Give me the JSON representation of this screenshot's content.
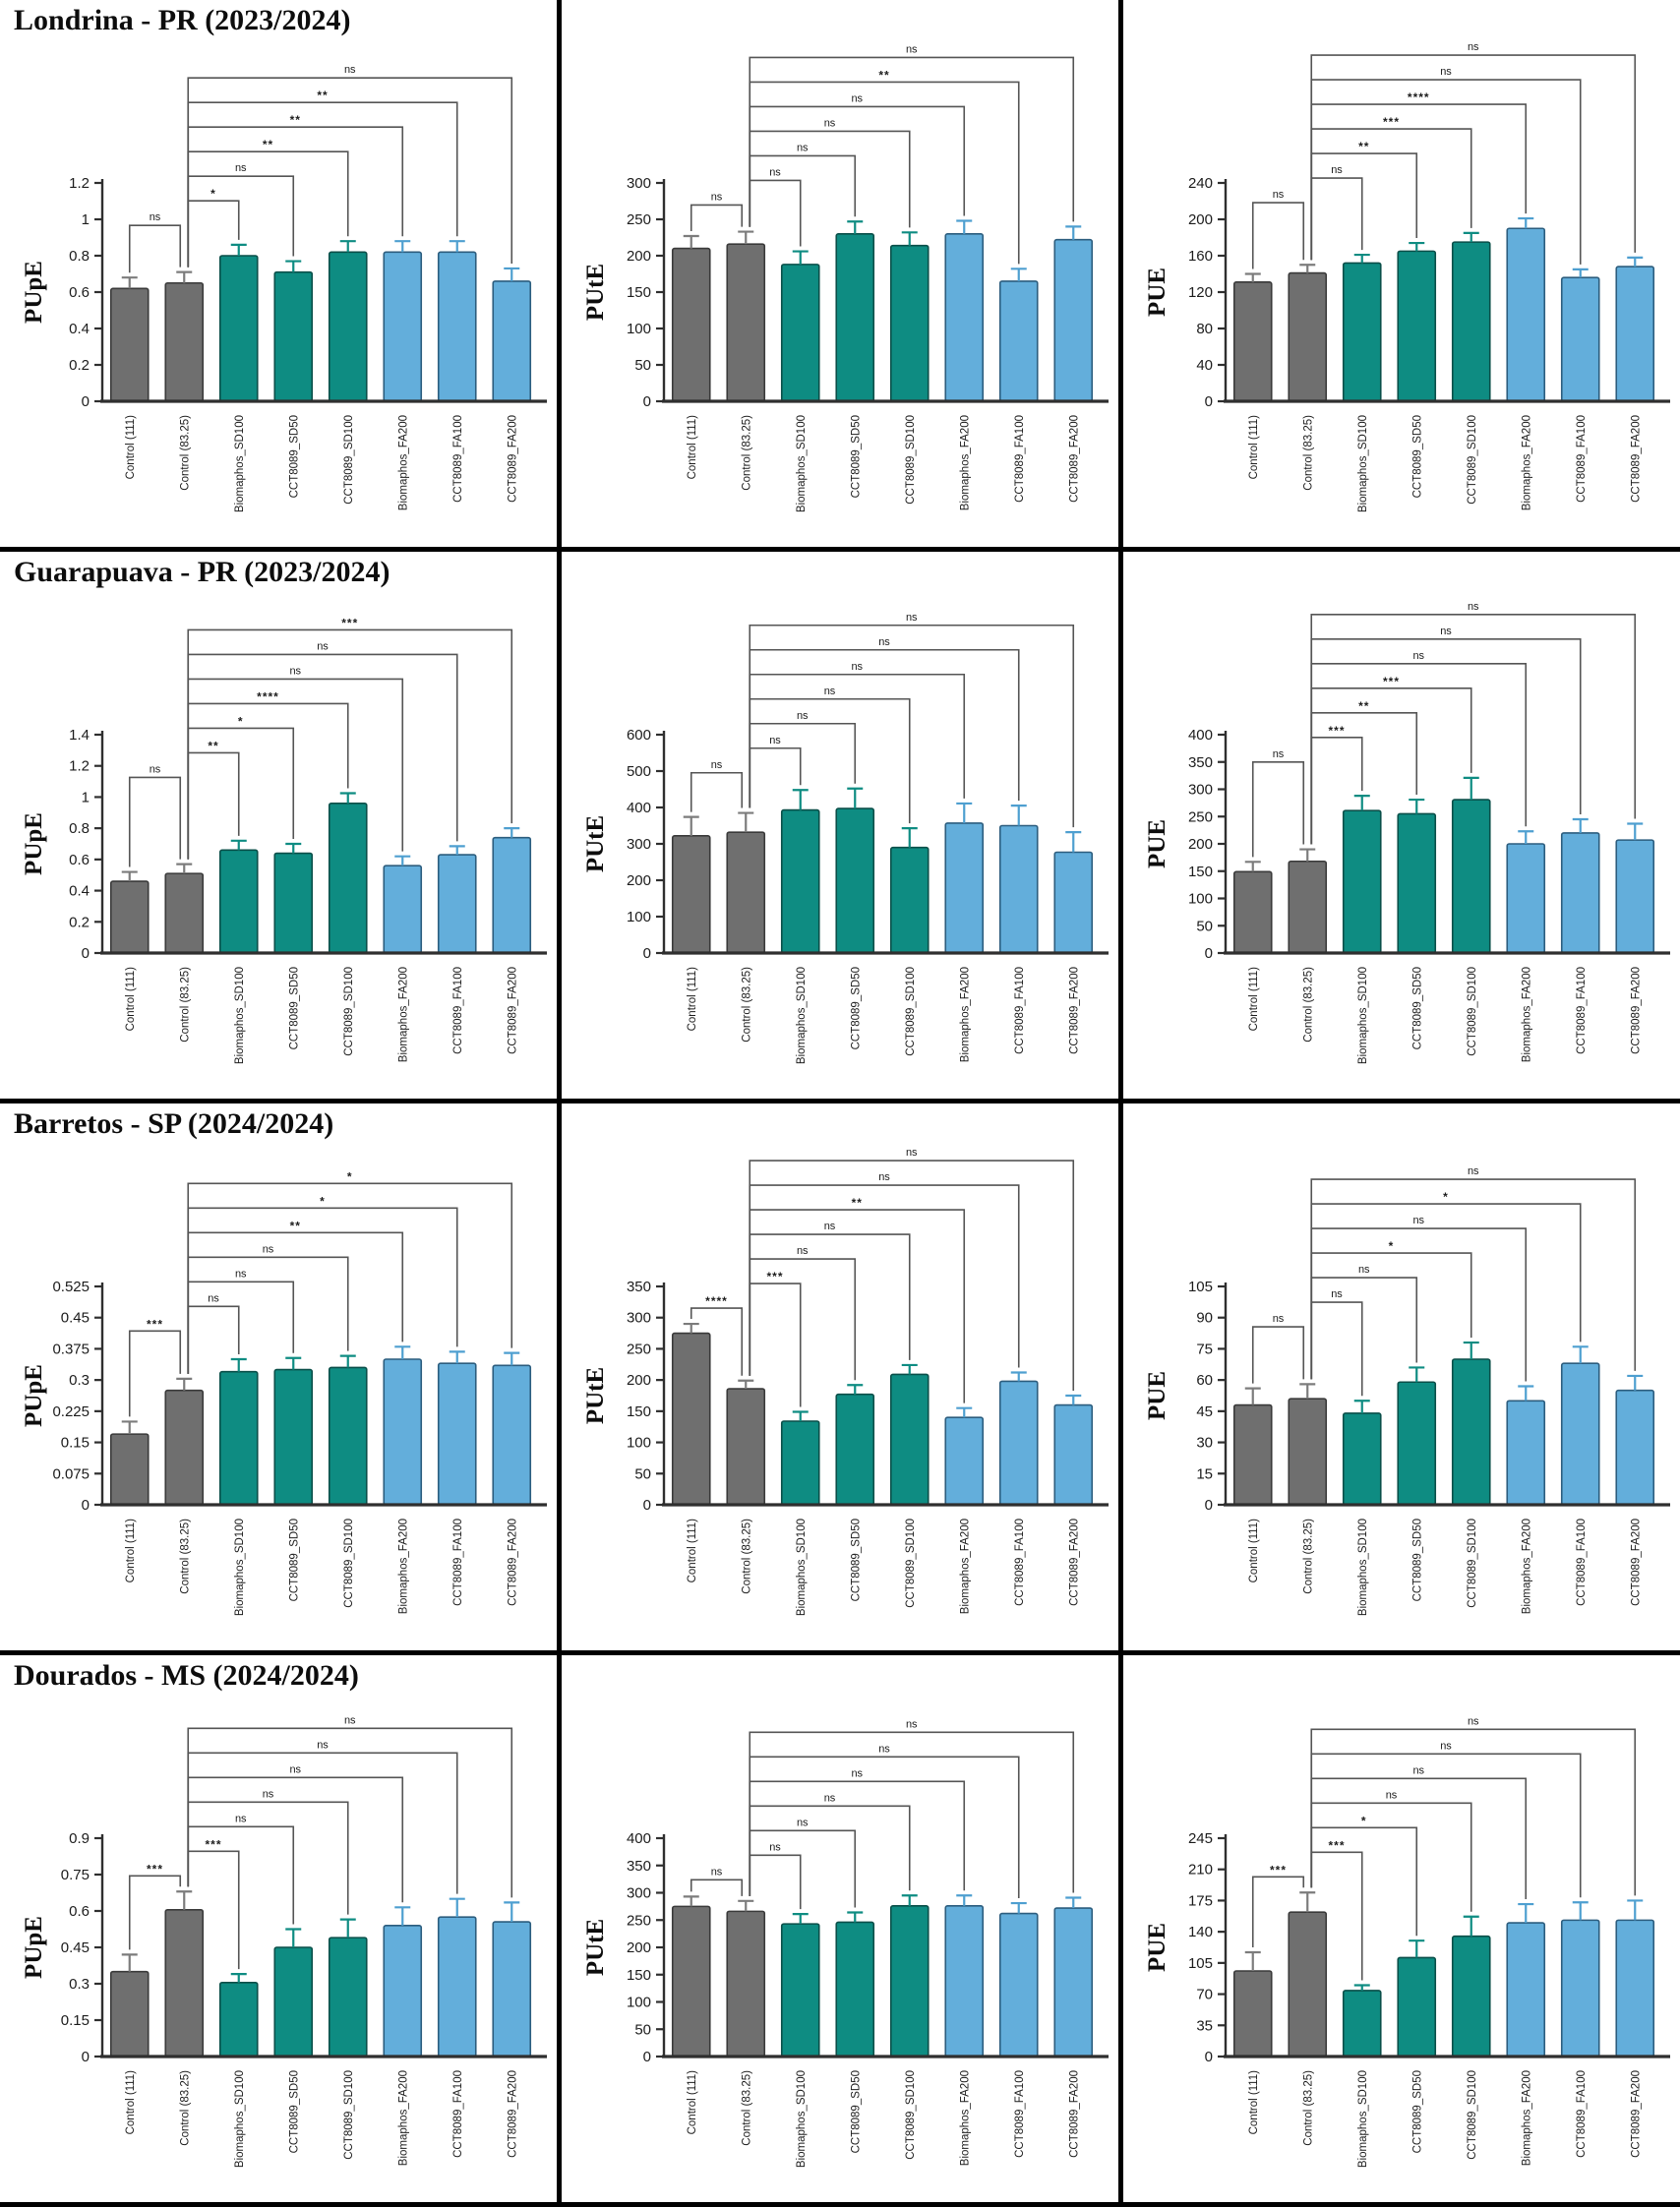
{
  "figure": {
    "rows": [
      {
        "title": "Londrina - PR (2023/2024)"
      },
      {
        "title": "Guarapuava - PR (2023/2024)"
      },
      {
        "title": "Barretos - SP (2024/2024)"
      },
      {
        "title": "Dourados - MS (2024/2024)"
      }
    ],
    "categories": [
      "Control (111)",
      "Control (83.25)",
      "Biomaphos_SD100",
      "CCT8089_SD50",
      "CCT8089_SD100",
      "Biomaphos_FA200",
      "CCT8089_FA100",
      "CCT8089_FA200"
    ],
    "groups": [
      "gray",
      "gray",
      "teal",
      "teal",
      "teal",
      "blue",
      "blue",
      "blue"
    ],
    "colors": {
      "gray": {
        "fill": "#6f6f6f",
        "edge": "#3a3a3a",
        "err": "#7c7c7c"
      },
      "teal": {
        "fill": "#0e8c82",
        "edge": "#0a4f49",
        "err": "#0e8c82"
      },
      "blue": {
        "fill": "#63aedb",
        "edge": "#2c5d7e",
        "err": "#4e9fd0"
      },
      "bracket": "#555555",
      "axis": "#2f2f2f"
    }
  },
  "chart_data": [
    {
      "type": "bar",
      "location": "Londrina - PR (2023/2024)",
      "ylabel": "PUpE",
      "ylim": [
        0,
        1.2
      ],
      "yticks": [
        "0",
        "0.2",
        "0.4",
        "0.6",
        "0.8",
        "1",
        "1.2"
      ],
      "values": [
        0.62,
        0.65,
        0.8,
        0.71,
        0.82,
        0.82,
        0.82,
        0.66
      ],
      "errors": [
        0.06,
        0.06,
        0.06,
        0.06,
        0.06,
        0.06,
        0.06,
        0.07
      ],
      "sig": [
        {
          "pair": [
            0,
            1
          ],
          "label": "ns"
        },
        {
          "pair": [
            1,
            2
          ],
          "label": "*"
        },
        {
          "pair": [
            1,
            3
          ],
          "label": "ns"
        },
        {
          "pair": [
            1,
            4
          ],
          "label": "**"
        },
        {
          "pair": [
            1,
            5
          ],
          "label": "**"
        },
        {
          "pair": [
            1,
            6
          ],
          "label": "**"
        },
        {
          "pair": [
            1,
            7
          ],
          "label": "ns"
        }
      ]
    },
    {
      "type": "bar",
      "location": "Londrina - PR (2023/2024)",
      "ylabel": "PUtE",
      "ylim": [
        0,
        300
      ],
      "yticks": [
        "0",
        "50",
        "100",
        "150",
        "200",
        "250",
        "300"
      ],
      "values": [
        210,
        216,
        188,
        230,
        214,
        230,
        165,
        222
      ],
      "errors": [
        17,
        17,
        18,
        17,
        18,
        18,
        17,
        18
      ],
      "sig": [
        {
          "pair": [
            0,
            1
          ],
          "label": "ns"
        },
        {
          "pair": [
            1,
            2
          ],
          "label": "ns"
        },
        {
          "pair": [
            1,
            3
          ],
          "label": "ns"
        },
        {
          "pair": [
            1,
            4
          ],
          "label": "ns"
        },
        {
          "pair": [
            1,
            5
          ],
          "label": "ns"
        },
        {
          "pair": [
            1,
            6
          ],
          "label": "**"
        },
        {
          "pair": [
            1,
            7
          ],
          "label": "ns"
        }
      ]
    },
    {
      "type": "bar",
      "location": "Londrina - PR (2023/2024)",
      "ylabel": "PUE",
      "ylim": [
        0,
        240
      ],
      "yticks": [
        "0",
        "40",
        "80",
        "120",
        "160",
        "200",
        "240"
      ],
      "values": [
        131,
        141,
        152,
        165,
        175,
        190,
        136,
        148
      ],
      "errors": [
        9,
        9,
        9,
        9,
        10,
        11,
        9,
        10
      ],
      "sig": [
        {
          "pair": [
            0,
            1
          ],
          "label": "ns"
        },
        {
          "pair": [
            1,
            2
          ],
          "label": "ns"
        },
        {
          "pair": [
            1,
            3
          ],
          "label": "**"
        },
        {
          "pair": [
            1,
            4
          ],
          "label": "***"
        },
        {
          "pair": [
            1,
            5
          ],
          "label": "****"
        },
        {
          "pair": [
            1,
            6
          ],
          "label": "ns"
        },
        {
          "pair": [
            1,
            7
          ],
          "label": "ns"
        }
      ]
    },
    {
      "type": "bar",
      "location": "Guarapuava - PR (2023/2024)",
      "ylabel": "PUpE",
      "ylim": [
        0,
        1.4
      ],
      "yticks": [
        "0",
        "0.2",
        "0.4",
        "0.6",
        "0.8",
        "1",
        "1.2",
        "1.4"
      ],
      "values": [
        0.46,
        0.51,
        0.66,
        0.64,
        0.96,
        0.56,
        0.63,
        0.74
      ],
      "errors": [
        0.06,
        0.06,
        0.06,
        0.06,
        0.065,
        0.06,
        0.055,
        0.06
      ],
      "sig": [
        {
          "pair": [
            0,
            1
          ],
          "label": "ns"
        },
        {
          "pair": [
            1,
            2
          ],
          "label": "**"
        },
        {
          "pair": [
            1,
            3
          ],
          "label": "*"
        },
        {
          "pair": [
            1,
            4
          ],
          "label": "****"
        },
        {
          "pair": [
            1,
            5
          ],
          "label": "ns"
        },
        {
          "pair": [
            1,
            6
          ],
          "label": "ns"
        },
        {
          "pair": [
            1,
            7
          ],
          "label": "***"
        }
      ]
    },
    {
      "type": "bar",
      "location": "Guarapuava - PR (2023/2024)",
      "ylabel": "PUtE",
      "ylim": [
        0,
        600
      ],
      "yticks": [
        "0",
        "100",
        "200",
        "300",
        "400",
        "500",
        "600"
      ],
      "values": [
        322,
        332,
        393,
        397,
        290,
        357,
        350,
        277
      ],
      "errors": [
        52,
        53,
        55,
        55,
        53,
        54,
        55,
        55
      ],
      "sig": [
        {
          "pair": [
            0,
            1
          ],
          "label": "ns"
        },
        {
          "pair": [
            1,
            2
          ],
          "label": "ns"
        },
        {
          "pair": [
            1,
            3
          ],
          "label": "ns"
        },
        {
          "pair": [
            1,
            4
          ],
          "label": "ns"
        },
        {
          "pair": [
            1,
            5
          ],
          "label": "ns"
        },
        {
          "pair": [
            1,
            6
          ],
          "label": "ns"
        },
        {
          "pair": [
            1,
            7
          ],
          "label": "ns"
        }
      ]
    },
    {
      "type": "bar",
      "location": "Guarapuava - PR (2023/2024)",
      "ylabel": "PUE",
      "ylim": [
        0,
        400
      ],
      "yticks": [
        "0",
        "50",
        "100",
        "150",
        "200",
        "250",
        "300",
        "350",
        "400"
      ],
      "values": [
        149,
        168,
        261,
        255,
        281,
        200,
        220,
        207
      ],
      "errors": [
        18,
        22,
        27,
        26,
        40,
        23,
        25,
        30
      ],
      "sig": [
        {
          "pair": [
            0,
            1
          ],
          "label": "ns"
        },
        {
          "pair": [
            1,
            2
          ],
          "label": "***"
        },
        {
          "pair": [
            1,
            3
          ],
          "label": "**"
        },
        {
          "pair": [
            1,
            4
          ],
          "label": "***"
        },
        {
          "pair": [
            1,
            5
          ],
          "label": "ns"
        },
        {
          "pair": [
            1,
            6
          ],
          "label": "ns"
        },
        {
          "pair": [
            1,
            7
          ],
          "label": "ns"
        }
      ]
    },
    {
      "type": "bar",
      "location": "Barretos - SP (2024/2024)",
      "ylabel": "PUpE",
      "ylim": [
        0,
        0.525
      ],
      "yticks": [
        "0",
        "0.075",
        "0.15",
        "0.225",
        "0.3",
        "0.375",
        "0.45",
        "0.525"
      ],
      "values": [
        0.17,
        0.275,
        0.32,
        0.325,
        0.33,
        0.35,
        0.34,
        0.335
      ],
      "errors": [
        0.03,
        0.028,
        0.03,
        0.028,
        0.028,
        0.03,
        0.028,
        0.03
      ],
      "sig": [
        {
          "pair": [
            0,
            1
          ],
          "label": "***"
        },
        {
          "pair": [
            1,
            2
          ],
          "label": "ns"
        },
        {
          "pair": [
            1,
            3
          ],
          "label": "ns"
        },
        {
          "pair": [
            1,
            4
          ],
          "label": "ns"
        },
        {
          "pair": [
            1,
            5
          ],
          "label": "**"
        },
        {
          "pair": [
            1,
            6
          ],
          "label": "*"
        },
        {
          "pair": [
            1,
            7
          ],
          "label": "*"
        }
      ]
    },
    {
      "type": "bar",
      "location": "Barretos - SP (2024/2024)",
      "ylabel": "PUtE",
      "ylim": [
        0,
        350
      ],
      "yticks": [
        "0",
        "50",
        "100",
        "150",
        "200",
        "250",
        "300",
        "350"
      ],
      "values": [
        275,
        186,
        134,
        177,
        209,
        140,
        198,
        160
      ],
      "errors": [
        15,
        13,
        15,
        15,
        15,
        15,
        14,
        15
      ],
      "sig": [
        {
          "pair": [
            0,
            1
          ],
          "label": "****"
        },
        {
          "pair": [
            1,
            2
          ],
          "label": "***"
        },
        {
          "pair": [
            1,
            3
          ],
          "label": "ns"
        },
        {
          "pair": [
            1,
            4
          ],
          "label": "ns"
        },
        {
          "pair": [
            1,
            5
          ],
          "label": "**"
        },
        {
          "pair": [
            1,
            6
          ],
          "label": "ns"
        },
        {
          "pair": [
            1,
            7
          ],
          "label": "ns"
        }
      ]
    },
    {
      "type": "bar",
      "location": "Barretos - SP (2024/2024)",
      "ylabel": "PUE",
      "ylim": [
        0,
        105
      ],
      "yticks": [
        "0",
        "15",
        "30",
        "45",
        "60",
        "75",
        "90",
        "105"
      ],
      "values": [
        48,
        51,
        44,
        59,
        70,
        50,
        68,
        55
      ],
      "errors": [
        8,
        7,
        6,
        7,
        8,
        7,
        8,
        7
      ],
      "sig": [
        {
          "pair": [
            0,
            1
          ],
          "label": "ns"
        },
        {
          "pair": [
            1,
            2
          ],
          "label": "ns"
        },
        {
          "pair": [
            1,
            3
          ],
          "label": "ns"
        },
        {
          "pair": [
            1,
            4
          ],
          "label": "*"
        },
        {
          "pair": [
            1,
            5
          ],
          "label": "ns"
        },
        {
          "pair": [
            1,
            6
          ],
          "label": "*"
        },
        {
          "pair": [
            1,
            7
          ],
          "label": "ns"
        }
      ]
    },
    {
      "type": "bar",
      "location": "Dourados - MS (2024/2024)",
      "ylabel": "PUpE",
      "ylim": [
        0,
        0.9
      ],
      "yticks": [
        "0",
        "0.15",
        "0.3",
        "0.45",
        "0.6",
        "0.75",
        "0.9"
      ],
      "values": [
        0.35,
        0.605,
        0.305,
        0.45,
        0.49,
        0.54,
        0.575,
        0.555
      ],
      "errors": [
        0.07,
        0.075,
        0.035,
        0.075,
        0.075,
        0.075,
        0.075,
        0.08
      ],
      "sig": [
        {
          "pair": [
            0,
            1
          ],
          "label": "***"
        },
        {
          "pair": [
            1,
            2
          ],
          "label": "***"
        },
        {
          "pair": [
            1,
            3
          ],
          "label": "ns"
        },
        {
          "pair": [
            1,
            4
          ],
          "label": "ns"
        },
        {
          "pair": [
            1,
            5
          ],
          "label": "ns"
        },
        {
          "pair": [
            1,
            6
          ],
          "label": "ns"
        },
        {
          "pair": [
            1,
            7
          ],
          "label": "ns"
        }
      ]
    },
    {
      "type": "bar",
      "location": "Dourados - MS (2024/2024)",
      "ylabel": "PUtE",
      "ylim": [
        0,
        400
      ],
      "yticks": [
        "0",
        "50",
        "100",
        "150",
        "200",
        "250",
        "300",
        "350",
        "400"
      ],
      "values": [
        275,
        266,
        243,
        246,
        276,
        276,
        262,
        272
      ],
      "errors": [
        18,
        19,
        18,
        18,
        19,
        19,
        19,
        19
      ],
      "sig": [
        {
          "pair": [
            0,
            1
          ],
          "label": "ns"
        },
        {
          "pair": [
            1,
            2
          ],
          "label": "ns"
        },
        {
          "pair": [
            1,
            3
          ],
          "label": "ns"
        },
        {
          "pair": [
            1,
            4
          ],
          "label": "ns"
        },
        {
          "pair": [
            1,
            5
          ],
          "label": "ns"
        },
        {
          "pair": [
            1,
            6
          ],
          "label": "ns"
        },
        {
          "pair": [
            1,
            7
          ],
          "label": "ns"
        }
      ]
    },
    {
      "type": "bar",
      "location": "Dourados - MS (2024/2024)",
      "ylabel": "PUE",
      "ylim": [
        0,
        245
      ],
      "yticks": [
        "0",
        "35",
        "70",
        "105",
        "140",
        "175",
        "210",
        "245"
      ],
      "values": [
        96,
        162,
        74,
        111,
        135,
        150,
        153,
        153
      ],
      "errors": [
        21,
        22,
        6,
        19,
        22,
        21,
        20,
        22
      ],
      "sig": [
        {
          "pair": [
            0,
            1
          ],
          "label": "***"
        },
        {
          "pair": [
            1,
            2
          ],
          "label": "***"
        },
        {
          "pair": [
            1,
            3
          ],
          "label": "*"
        },
        {
          "pair": [
            1,
            4
          ],
          "label": "ns"
        },
        {
          "pair": [
            1,
            5
          ],
          "label": "ns"
        },
        {
          "pair": [
            1,
            6
          ],
          "label": "ns"
        },
        {
          "pair": [
            1,
            7
          ],
          "label": "ns"
        }
      ]
    }
  ]
}
